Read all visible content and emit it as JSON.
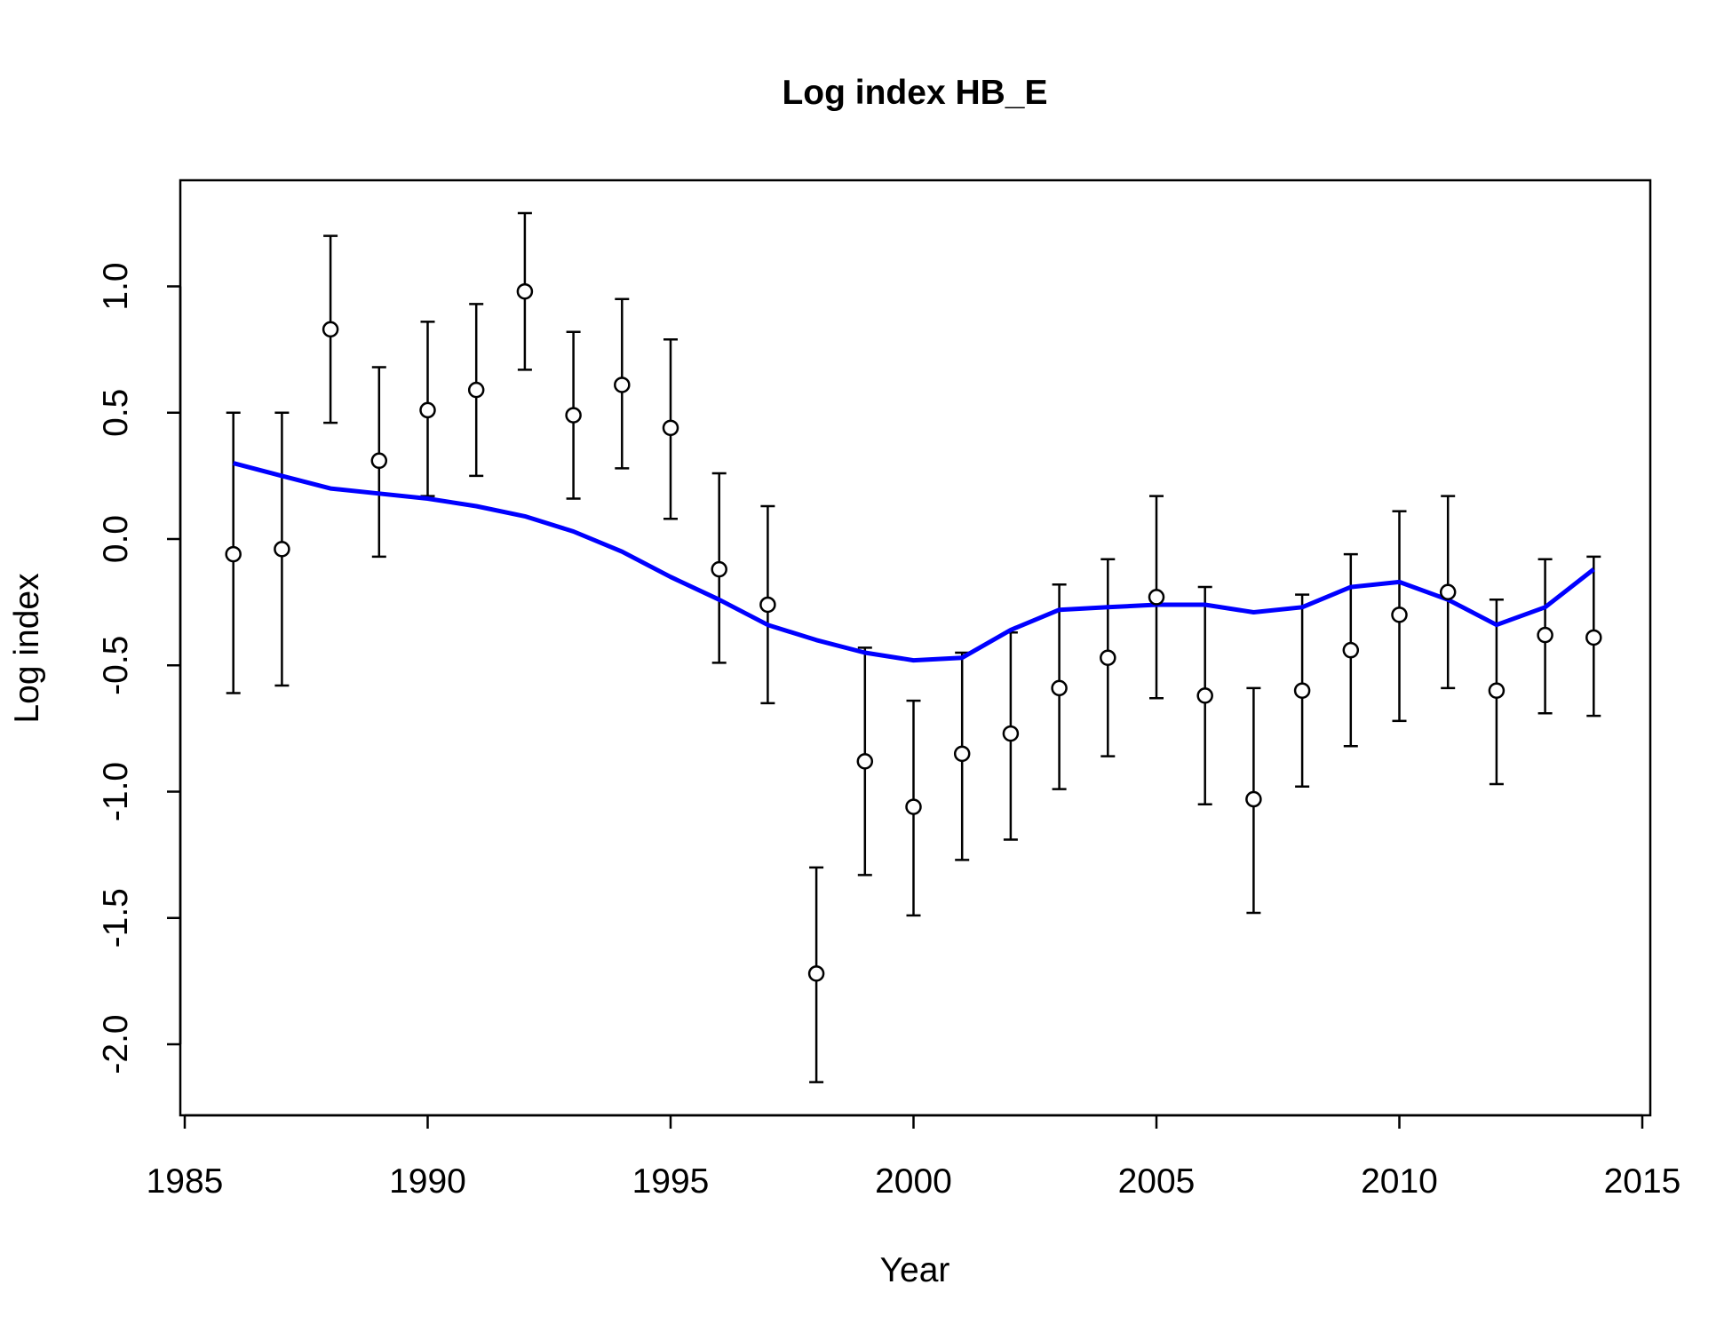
{
  "chart_data": {
    "type": "scatter",
    "title": "Log index HB_E",
    "xlabel": "Year",
    "ylabel": "Log index",
    "xlim": [
      1985,
      2015
    ],
    "ylim": [
      -2.0,
      1.0
    ],
    "x_ticks": [
      1985,
      1990,
      1995,
      2000,
      2005,
      2010,
      2015
    ],
    "x_tick_labels": [
      "1985",
      "1990",
      "1995",
      "2000",
      "2005",
      "2010",
      "2015"
    ],
    "y_ticks": [
      -2.0,
      -1.5,
      -1.0,
      -0.5,
      0.0,
      0.5,
      1.0
    ],
    "y_tick_labels": [
      "-2.0",
      "-1.5",
      "-1.0",
      "-0.5",
      "0.0",
      "0.5",
      "1.0"
    ],
    "grid": false,
    "legend": "none",
    "series": [
      {
        "type": "points_with_error_bars",
        "color": "#000000",
        "x": [
          1986,
          1987,
          1988,
          1989,
          1990,
          1991,
          1992,
          1993,
          1994,
          1995,
          1996,
          1997,
          1998,
          1999,
          2000,
          2001,
          2002,
          2003,
          2004,
          2005,
          2006,
          2007,
          2008,
          2009,
          2010,
          2011,
          2012,
          2013,
          2014
        ],
        "y": [
          -0.06,
          -0.04,
          0.83,
          0.31,
          0.51,
          0.59,
          0.98,
          0.49,
          0.61,
          0.44,
          -0.12,
          -0.26,
          -1.72,
          -0.88,
          -1.06,
          -0.85,
          -0.77,
          -0.59,
          -0.47,
          -0.23,
          -0.62,
          -1.03,
          -0.6,
          -0.44,
          -0.3,
          -0.21,
          -0.6,
          -0.38,
          -0.39
        ],
        "lower": [
          -0.61,
          -0.58,
          0.46,
          -0.07,
          0.17,
          0.25,
          0.67,
          0.16,
          0.28,
          0.08,
          -0.49,
          -0.65,
          -2.15,
          -1.33,
          -1.49,
          -1.27,
          -1.19,
          -0.99,
          -0.86,
          -0.63,
          -1.05,
          -1.48,
          -0.98,
          -0.82,
          -0.72,
          -0.59,
          -0.97,
          -0.69,
          -0.7
        ],
        "upper": [
          0.5,
          0.5,
          1.2,
          0.68,
          0.86,
          0.93,
          1.29,
          0.82,
          0.95,
          0.79,
          0.26,
          0.13,
          -1.3,
          -0.43,
          -0.64,
          -0.45,
          -0.37,
          -0.18,
          -0.08,
          0.17,
          -0.19,
          -0.59,
          -0.22,
          -0.06,
          0.11,
          0.17,
          -0.24,
          -0.08,
          -0.07
        ]
      },
      {
        "type": "line",
        "color": "#0000ff",
        "x": [
          1986,
          1987,
          1988,
          1989,
          1990,
          1991,
          1992,
          1993,
          1994,
          1995,
          1996,
          1997,
          1998,
          1999,
          2000,
          2001,
          2002,
          2003,
          2004,
          2005,
          2006,
          2007,
          2008,
          2009,
          2010,
          2011,
          2012,
          2013,
          2014
        ],
        "y": [
          0.3,
          0.25,
          0.2,
          0.18,
          0.16,
          0.13,
          0.09,
          0.03,
          -0.05,
          -0.15,
          -0.24,
          -0.34,
          -0.4,
          -0.45,
          -0.48,
          -0.47,
          -0.36,
          -0.28,
          -0.27,
          -0.26,
          -0.26,
          -0.29,
          -0.27,
          -0.19,
          -0.17,
          -0.24,
          -0.34,
          -0.27,
          -0.12
        ]
      }
    ]
  }
}
